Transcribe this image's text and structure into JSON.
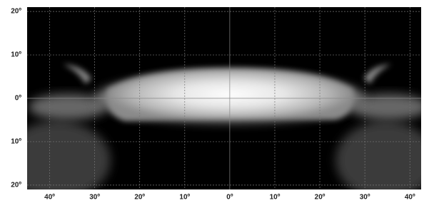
{
  "chart_data": {
    "type": "beam-pattern",
    "xlim": [
      -45,
      42.5
    ],
    "ylim": [
      -21,
      21
    ],
    "xticks": [
      {
        "value": -40,
        "label": "40º"
      },
      {
        "value": -30,
        "label": "30º"
      },
      {
        "value": -20,
        "label": "20º"
      },
      {
        "value": -10,
        "label": "10º"
      },
      {
        "value": 0,
        "label": "0º"
      },
      {
        "value": 10,
        "label": "10º"
      },
      {
        "value": 20,
        "label": "20º"
      },
      {
        "value": 30,
        "label": "30º"
      },
      {
        "value": 40,
        "label": "40º"
      }
    ],
    "yticks": [
      {
        "value": 20,
        "label": "20º"
      },
      {
        "value": 10,
        "label": "10º"
      },
      {
        "value": 0,
        "label": "0º"
      },
      {
        "value": -10,
        "label": "10º"
      },
      {
        "value": -20,
        "label": "20º"
      }
    ],
    "grid": true
  }
}
